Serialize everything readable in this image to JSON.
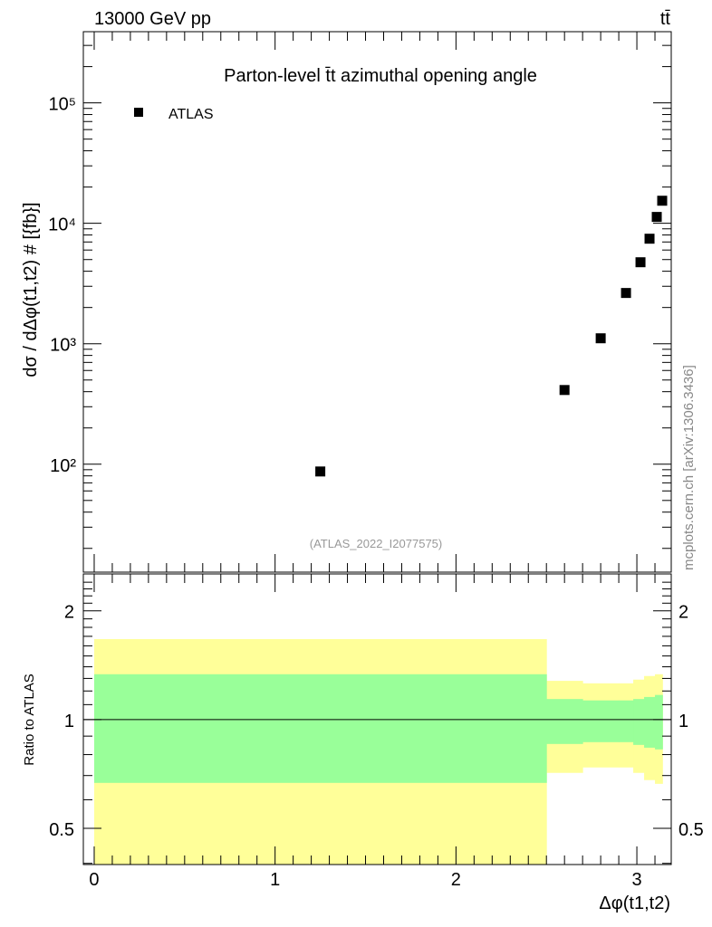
{
  "header": {
    "left": "13000 GeV pp",
    "right": "tt̄"
  },
  "watermark": "mcplots.cern.ch [arXiv:1306.3436]",
  "analysis_id": "(ATLAS_2022_I2077575)",
  "chart_data": [
    {
      "type": "scatter",
      "title": "Parton-level t̄t azimuthal opening angle",
      "ylabel": "dσ / dΔφ(t1,t2) # [{fb}]",
      "yscale": "log",
      "ylim": [
        12.7,
        390000
      ],
      "xlim": [
        -0.06,
        3.19
      ],
      "yticks": [
        {
          "v": 100,
          "label": "10²"
        },
        {
          "v": 1000,
          "label": "10³"
        },
        {
          "v": 10000,
          "label": "10⁴"
        },
        {
          "v": 100000,
          "label": "10⁵"
        }
      ],
      "legend": {
        "position": "top-left",
        "entries": [
          "ATLAS"
        ]
      },
      "series": [
        {
          "name": "ATLAS",
          "x": [
            1.25,
            2.6,
            2.8,
            2.94,
            3.02,
            3.07,
            3.11,
            3.14
          ],
          "y": [
            87,
            413,
            1110,
            2640,
            4750,
            7450,
            11300,
            15400
          ]
        }
      ]
    },
    {
      "type": "area",
      "ylabel": "Ratio to ATLAS",
      "xlabel": "Δφ(t1,t2)",
      "yscale": "log",
      "ylim": [
        0.397,
        2.53
      ],
      "xlim": [
        -0.06,
        3.19
      ],
      "xticks": [
        0,
        1,
        2,
        3
      ],
      "yticks": [
        {
          "v": 0.5,
          "label": "0.5"
        },
        {
          "v": 1,
          "label": "1"
        },
        {
          "v": 2,
          "label": "2"
        }
      ],
      "bin_edges": [
        0,
        2.5,
        2.7,
        2.9,
        2.98,
        3.04,
        3.1,
        3.1416
      ],
      "green_band": {
        "upper": [
          1.335,
          1.14,
          1.13,
          1.13,
          1.14,
          1.155,
          1.17
        ],
        "lower": [
          0.668,
          0.856,
          0.866,
          0.866,
          0.851,
          0.836,
          0.827
        ]
      },
      "yellow_band": {
        "upper": [
          1.67,
          1.28,
          1.26,
          1.26,
          1.29,
          1.32,
          1.335
        ],
        "lower": [
          0.33,
          0.712,
          0.737,
          0.737,
          0.712,
          0.68,
          0.664
        ]
      },
      "reference_line": 1
    }
  ],
  "colors": {
    "green": "#99ff99",
    "yellow": "#ffff99"
  }
}
